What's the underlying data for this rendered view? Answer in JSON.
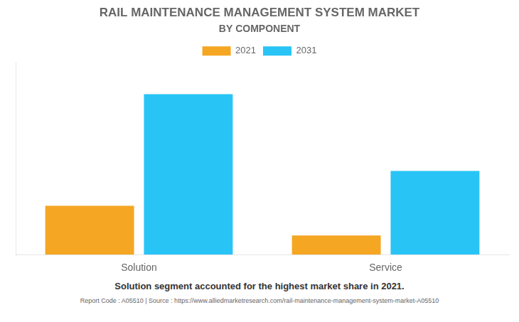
{
  "chart_data": {
    "type": "bar",
    "title": "RAIL MAINTENANCE MANAGEMENT SYSTEM MARKET",
    "subtitle": "BY COMPONENT",
    "categories": [
      "Solution",
      "Service"
    ],
    "series": [
      {
        "name": "2021",
        "color": "#F5A623",
        "values": [
          2.8,
          1.1
        ]
      },
      {
        "name": "2031",
        "color": "#29C4F6",
        "values": [
          9.2,
          4.8
        ]
      }
    ],
    "ylim": [
      0,
      11
    ],
    "grid": false,
    "legend": "top",
    "tick_labels": "x",
    "annotations": [
      "Solution segment accounted for the highest market share in 2021.",
      "Report Code : A05510  |  Source : https://www.alliedmarketresearch.com/rail-maintenance-management-system-market-A05510"
    ]
  }
}
